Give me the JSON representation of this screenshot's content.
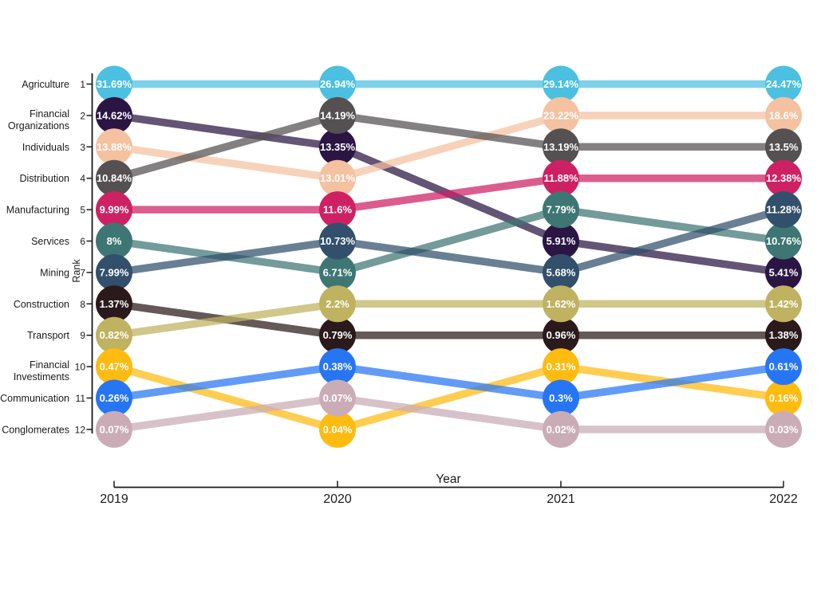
{
  "figure": {
    "background": "#ffffff",
    "axis_color": "#1a1a1a",
    "node_label_color": "#ffffff"
  },
  "chart_data": {
    "type": "line",
    "variant": "bump-rank-chart",
    "title": "",
    "xlabel": "Year",
    "ylabel": "Rank",
    "x_categories": [
      "2019",
      "2020",
      "2021",
      "2022"
    ],
    "rank_ticks": [
      "1",
      "2",
      "3",
      "4",
      "5",
      "6",
      "7",
      "8",
      "9",
      "10",
      "11",
      "12"
    ],
    "left_labels": [
      "Agriculture",
      "Financial\nOrganizations",
      "Individuals",
      "Distribution",
      "Manufacturing",
      "Services",
      "Mining",
      "Construction",
      "Transport",
      "Financial\nInvestiments",
      "Communication",
      "Conglomerates"
    ],
    "legend_position": "none",
    "grid": false,
    "series": [
      {
        "name": "Agriculture",
        "color": "#4CC0E0",
        "ranks": [
          1,
          1,
          1,
          1
        ],
        "values": [
          31.69,
          26.94,
          29.14,
          24.47
        ],
        "labels": [
          "31.69%",
          "26.94%",
          "29.14%",
          "24.47%"
        ]
      },
      {
        "name": "Financial Organizations",
        "color": "#2B1543",
        "ranks": [
          2,
          3,
          6,
          7
        ],
        "values": [
          14.62,
          13.35,
          5.91,
          5.41
        ],
        "labels": [
          "14.62%",
          "13.35%",
          "5.91%",
          "5.41%"
        ]
      },
      {
        "name": "Individuals",
        "color": "#F4C1A1",
        "ranks": [
          3,
          4,
          2,
          2
        ],
        "values": [
          13.88,
          13.01,
          23.22,
          18.6
        ],
        "labels": [
          "13.88%",
          "13.01%",
          "23.22%",
          "18.6%"
        ]
      },
      {
        "name": "Distribution",
        "color": "#555152",
        "ranks": [
          4,
          2,
          3,
          3
        ],
        "values": [
          10.84,
          14.19,
          13.19,
          13.5
        ],
        "labels": [
          "10.84%",
          "14.19%",
          "13.19%",
          "13.5%"
        ]
      },
      {
        "name": "Manufacturing",
        "color": "#CE2164",
        "ranks": [
          5,
          5,
          4,
          4
        ],
        "values": [
          9.99,
          11.6,
          11.88,
          12.38
        ],
        "labels": [
          "9.99%",
          "11.6%",
          "11.88%",
          "12.38%"
        ]
      },
      {
        "name": "Services",
        "color": "#3E7673",
        "ranks": [
          6,
          7,
          5,
          6
        ],
        "values": [
          8,
          6.71,
          7.79,
          10.76
        ],
        "labels": [
          "8%",
          "6.71%",
          "7.79%",
          "10.76%"
        ]
      },
      {
        "name": "Mining",
        "color": "#32506B",
        "ranks": [
          7,
          6,
          7,
          5
        ],
        "values": [
          7.99,
          10.73,
          5.68,
          11.28
        ],
        "labels": [
          "7.99%",
          "10.73%",
          "5.68%",
          "11.28%"
        ]
      },
      {
        "name": "Construction",
        "color": "#2B1A1B",
        "ranks": [
          8,
          9,
          9,
          9
        ],
        "values": [
          1.37,
          0.79,
          0.96,
          1.38
        ],
        "labels": [
          "1.37%",
          "0.79%",
          "0.96%",
          "1.38%"
        ]
      },
      {
        "name": "Transport",
        "color": "#BFB260",
        "ranks": [
          9,
          8,
          8,
          8
        ],
        "values": [
          0.82,
          2.2,
          1.62,
          1.42
        ],
        "labels": [
          "0.82%",
          "2.2%",
          "1.62%",
          "1.42%"
        ]
      },
      {
        "name": "Financial Investiments",
        "color": "#FEBB10",
        "ranks": [
          10,
          12,
          10,
          11
        ],
        "values": [
          0.47,
          0.04,
          0.31,
          0.16
        ],
        "labels": [
          "0.47%",
          "0.04%",
          "0.31%",
          "0.16%"
        ]
      },
      {
        "name": "Communication",
        "color": "#2676F3",
        "ranks": [
          11,
          10,
          11,
          10
        ],
        "values": [
          0.26,
          0.38,
          0.3,
          0.61
        ],
        "labels": [
          "0.26%",
          "0.38%",
          "0.3%",
          "0.61%"
        ]
      },
      {
        "name": "Conglomerates",
        "color": "#CAACB7",
        "ranks": [
          12,
          11,
          12,
          12
        ],
        "values": [
          0.07,
          0.07,
          0.02,
          0.03
        ],
        "labels": [
          "0.07%",
          "0.07%",
          "0.02%",
          "0.03%"
        ]
      }
    ]
  }
}
